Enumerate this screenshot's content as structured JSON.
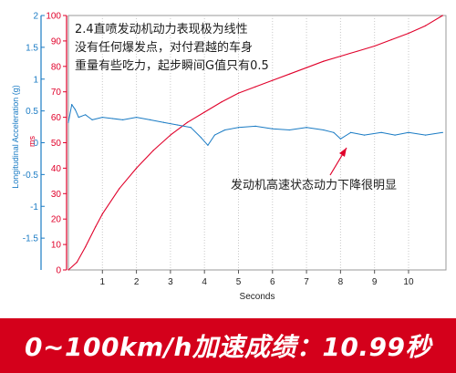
{
  "chart_data": {
    "type": "line",
    "xlabel": "Seconds",
    "x_ticks": [
      "1",
      "2",
      "3",
      "4",
      "5",
      "6",
      "7",
      "8",
      "9",
      "10"
    ],
    "xlim": [
      0,
      11.1
    ],
    "left_axis_outer": {
      "label": "Longitudinal Acceleration (g)",
      "ticks": [
        "2",
        "1.5",
        "1",
        "0.5",
        "0",
        "-0.5",
        "-1",
        "-1.5"
      ],
      "unit_fragment": "ms",
      "color": "#1a7bc4"
    },
    "left_axis_inner": {
      "ticks": [
        "100",
        "90",
        "80",
        "70",
        "60",
        "50",
        "40",
        "30",
        "20",
        "10",
        "0"
      ],
      "ylim": [
        0,
        100
      ],
      "color": "#e0002a"
    },
    "series": [
      {
        "color": "#e0002a",
        "axis": "left_axis_inner",
        "x": [
          0,
          0.25,
          0.5,
          0.8,
          1.0,
          1.5,
          2.0,
          2.5,
          3.0,
          3.5,
          4.0,
          4.5,
          5.0,
          5.5,
          6.0,
          6.5,
          7.0,
          7.5,
          8.0,
          8.5,
          9.0,
          9.5,
          10.0,
          10.5,
          11.0
        ],
        "y": [
          0,
          3,
          9,
          17,
          22,
          32,
          40,
          47,
          53,
          58,
          62,
          66,
          69.5,
          72,
          74.5,
          77,
          79.5,
          82,
          84,
          86,
          88,
          90.5,
          93,
          96,
          100
        ]
      },
      {
        "color": "#1a7bc4",
        "axis": "left_axis_inner",
        "x": [
          0,
          0.1,
          0.2,
          0.3,
          0.5,
          0.7,
          1.0,
          1.3,
          1.6,
          2.0,
          2.4,
          2.8,
          3.2,
          3.6,
          3.9,
          4.1,
          4.3,
          4.6,
          5.0,
          5.5,
          6.0,
          6.5,
          7.0,
          7.5,
          7.8,
          8.0,
          8.3,
          8.7,
          9.2,
          9.6,
          10.0,
          10.5,
          11.0
        ],
        "y": [
          58,
          65,
          63,
          60,
          61,
          59,
          60,
          59.5,
          59,
          60,
          59,
          58,
          57,
          56,
          52,
          49,
          53,
          55,
          56,
          56.5,
          55.5,
          55,
          56,
          55,
          54,
          51.5,
          54,
          53,
          54,
          53,
          54,
          53,
          54
        ]
      }
    ],
    "annotations": {
      "top_line1": "2.4直喷发动机动力表现极为线性",
      "top_line2": "没有任何爆发点，对付君越的车身",
      "top_line3": "重量有些吃力，起步瞬间G值只有0.5",
      "mid_note": "发动机高速状态动力下降很明显"
    },
    "grid": true
  },
  "banner": {
    "text": "0~100km/h加速成绩：10.99秒",
    "color": "#d4001b"
  }
}
